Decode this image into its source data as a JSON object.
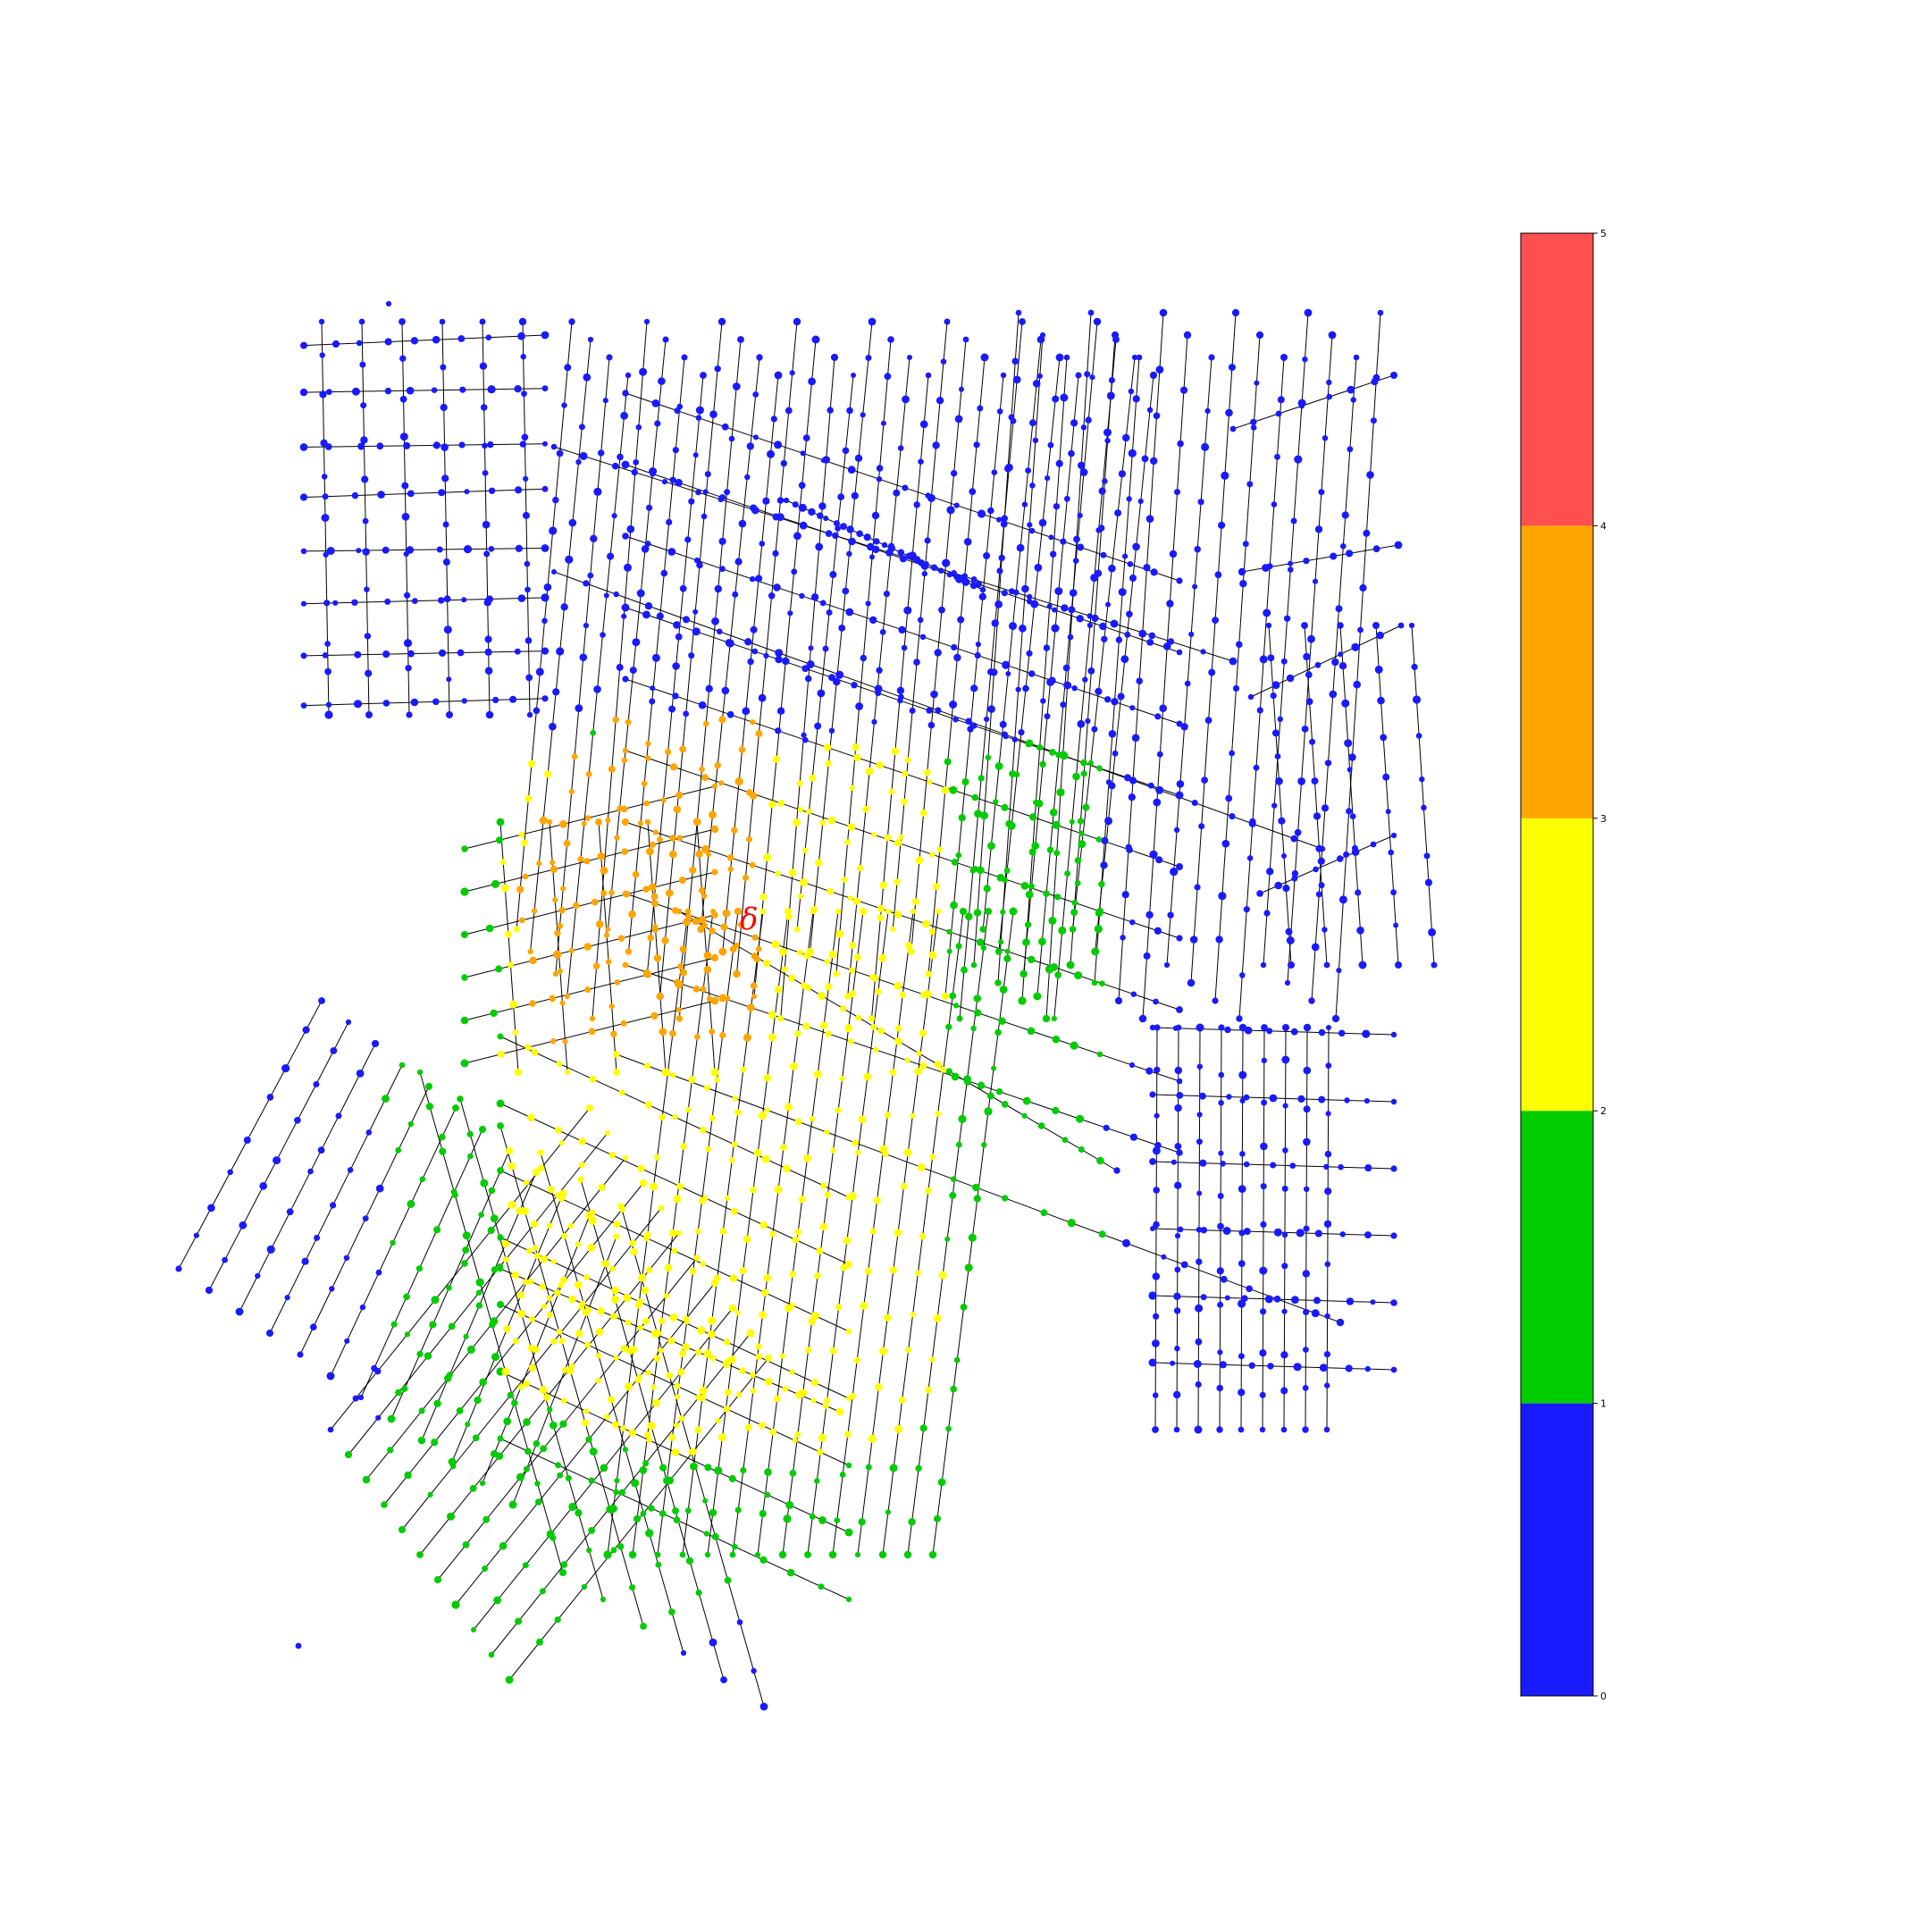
{
  "figure": {
    "type": "network-map",
    "marker": {
      "label": "δ",
      "color": "#ff0000"
    },
    "edge_color": "#000000"
  },
  "colorbar": {
    "ticks": [
      "0",
      "1",
      "2",
      "3",
      "4",
      "5"
    ],
    "bands": [
      {
        "from": 0,
        "to": 1,
        "color": "#1a1aff"
      },
      {
        "from": 1,
        "to": 2,
        "color": "#00cc00"
      },
      {
        "from": 2,
        "to": 3,
        "color": "#ffff00"
      },
      {
        "from": 3,
        "to": 4,
        "color": "#ffa500"
      },
      {
        "from": 4,
        "to": 5,
        "color": "#ff5050"
      }
    ]
  }
}
